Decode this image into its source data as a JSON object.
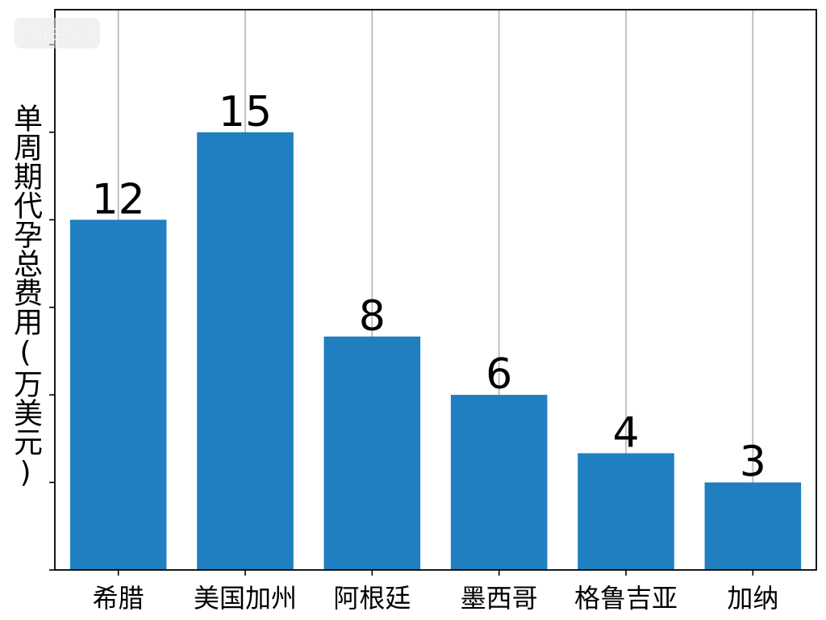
{
  "watermark": "AI生成",
  "chart_data": {
    "type": "bar",
    "categories": [
      "希腊",
      "美国加州",
      "阿根廷",
      "墨西哥",
      "格鲁吉亚",
      "加纳"
    ],
    "values": [
      12,
      15,
      8,
      6,
      4,
      3
    ],
    "data_labels": [
      "12",
      "15",
      "8",
      "6",
      "4",
      "3"
    ],
    "title": "",
    "xlabel": "",
    "ylabel": "单周期代孕总费用(万美元)",
    "ylim": [
      0,
      19.2
    ],
    "yticks": [
      0,
      3,
      6,
      9,
      12,
      15,
      18
    ],
    "grid": "vertical",
    "bar_color": "#1f7fc0",
    "grid_color": "#b0b0b0"
  }
}
